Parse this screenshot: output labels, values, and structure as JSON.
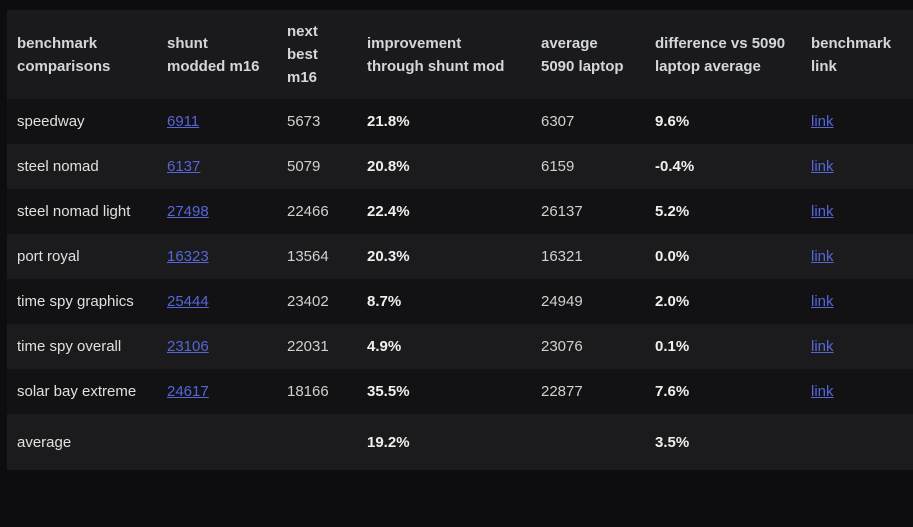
{
  "table": {
    "columns": [
      {
        "key": "benchmark",
        "label": "benchmark comparisons"
      },
      {
        "key": "shunt",
        "label": "shunt modded m16"
      },
      {
        "key": "next",
        "label": "next best m16"
      },
      {
        "key": "improvement",
        "label": "improvement through shunt mod"
      },
      {
        "key": "avg5090",
        "label": "average 5090 laptop"
      },
      {
        "key": "diff",
        "label": "difference vs 5090 laptop average"
      },
      {
        "key": "link",
        "label": "benchmark link"
      }
    ],
    "rows": [
      {
        "benchmark": "speedway",
        "shunt": "6911",
        "next": "5673",
        "improvement": "21.8%",
        "avg5090": "6307",
        "diff": "9.6%",
        "link": "link"
      },
      {
        "benchmark": "steel nomad",
        "shunt": "6137",
        "next": "5079",
        "improvement": "20.8%",
        "avg5090": "6159",
        "diff": "-0.4%",
        "link": "link"
      },
      {
        "benchmark": "steel nomad light",
        "shunt": "27498",
        "next": "22466",
        "improvement": "22.4%",
        "avg5090": "26137",
        "diff": "5.2%",
        "link": "link"
      },
      {
        "benchmark": "port royal",
        "shunt": "16323",
        "next": "13564",
        "improvement": "20.3%",
        "avg5090": "16321",
        "diff": "0.0%",
        "link": "link"
      },
      {
        "benchmark": "time spy graphics",
        "shunt": "25444",
        "next": "23402",
        "improvement": "8.7%",
        "avg5090": "24949",
        "diff": "2.0%",
        "link": "link"
      },
      {
        "benchmark": "time spy overall",
        "shunt": "23106",
        "next": "22031",
        "improvement": "4.9%",
        "avg5090": "23076",
        "diff": "0.1%",
        "link": "link"
      },
      {
        "benchmark": "solar bay extreme",
        "shunt": "24617",
        "next": "18166",
        "improvement": "35.5%",
        "avg5090": "22877",
        "diff": "7.6%",
        "link": "link"
      }
    ],
    "summary_row": {
      "benchmark": "average",
      "improvement": "19.2%",
      "diff": "3.5%"
    },
    "colors": {
      "link_blue": "#5566d6",
      "row_dark": "#121215",
      "row_light": "#1b1b1e",
      "header_bg": "#1a1a1d",
      "page_bg": "#0d0d0f",
      "bold_text": "#f0efec"
    }
  }
}
